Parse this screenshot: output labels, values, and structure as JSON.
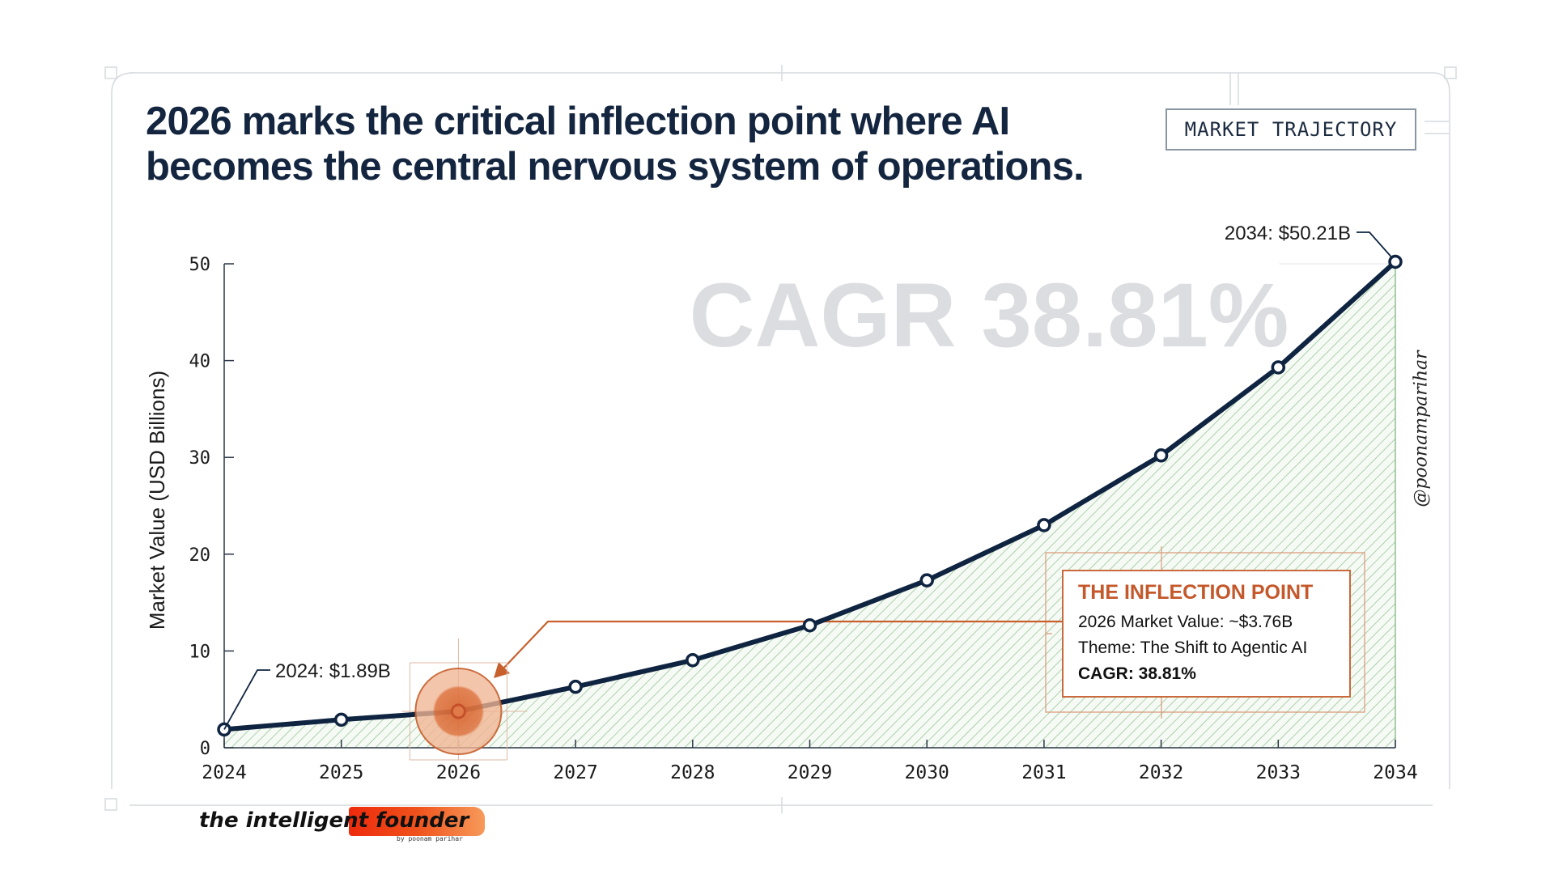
{
  "header": {
    "title_line1": "2026 marks the critical inflection point where AI",
    "title_line2": "becomes the central nervous system of operations.",
    "badge": "MARKET TRAJECTORY"
  },
  "callout": {
    "heading": "THE INFLECTION POINT",
    "line1": "2026 Market Value: ~$3.76B",
    "line2": "Theme: The Shift to Agentic AI",
    "line3": "CAGR: 38.81%"
  },
  "branding": {
    "logo_name": "the intelligent founder",
    "logo_byline": "by poonam parihar",
    "handle": "@poonamparihar"
  },
  "colors": {
    "line": "#0f2440",
    "fill_hatch": "#8fbf8f",
    "accent": "#c8602e",
    "watermark": "#dcdde0"
  },
  "chart_data": {
    "type": "area",
    "title": "2026 marks the critical inflection point where AI becomes the central nervous system of operations.",
    "xlabel": "",
    "ylabel": "Market Value (USD Billions)",
    "x": [
      "2024",
      "2025",
      "2026",
      "2027",
      "2028",
      "2029",
      "2030",
      "2031",
      "2032",
      "2033",
      "2034"
    ],
    "series": [
      {
        "name": "Market Value",
        "values": [
          1.89,
          2.9,
          3.76,
          6.3,
          9.05,
          12.65,
          17.3,
          23.0,
          30.2,
          39.3,
          50.21
        ]
      }
    ],
    "ylim": [
      0,
      50
    ],
    "yticks": [
      "0",
      "10",
      "20",
      "30",
      "40",
      "50"
    ],
    "grid": false,
    "highlight_year": "2026",
    "annotations": {
      "start": "2024: $1.89B",
      "end": "2034: $50.21B",
      "watermark": "CAGR 38.81%"
    }
  }
}
